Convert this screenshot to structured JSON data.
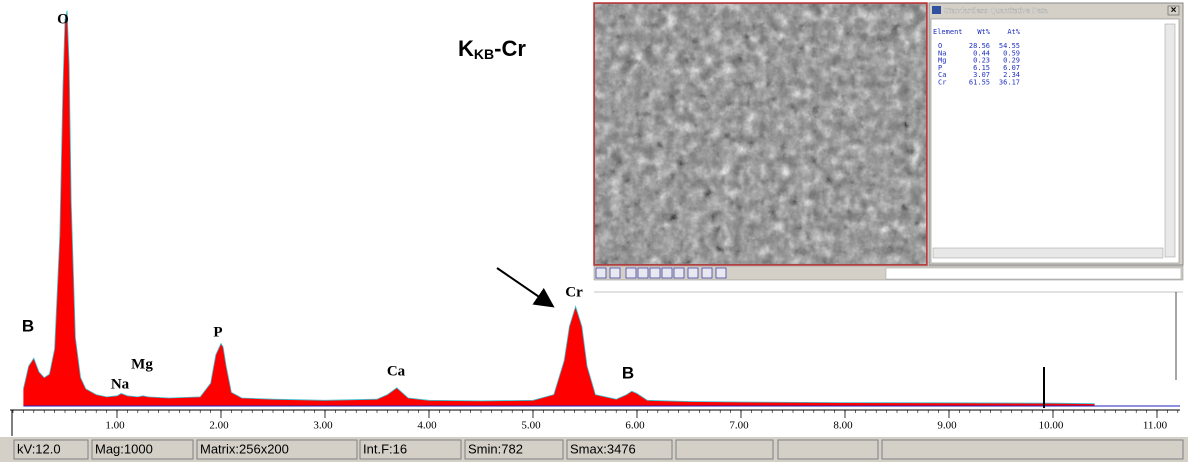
{
  "chart_data": {
    "type": "area",
    "title": {
      "main": "K",
      "sub": "KB",
      "rest": "-Cr"
    },
    "x": [
      0.1,
      0.15,
      0.2,
      0.25,
      0.3,
      0.35,
      0.4,
      0.45,
      0.48,
      0.5,
      0.52,
      0.54,
      0.56,
      0.6,
      0.65,
      0.7,
      0.8,
      0.9,
      1.0,
      1.04,
      1.1,
      1.2,
      1.25,
      1.3,
      1.5,
      1.8,
      1.9,
      1.95,
      2.0,
      2.02,
      2.05,
      2.1,
      2.2,
      2.5,
      3.0,
      3.5,
      3.6,
      3.69,
      3.8,
      4.0,
      4.5,
      5.0,
      5.2,
      5.3,
      5.35,
      5.41,
      5.47,
      5.52,
      5.6,
      5.8,
      5.9,
      5.95,
      6.0,
      6.1,
      6.5,
      7.0,
      8.0,
      9.0,
      10.0,
      10.4
    ],
    "values": [
      150,
      350,
      420,
      300,
      250,
      280,
      500,
      1500,
      2800,
      3400,
      3476,
      3000,
      1800,
      600,
      250,
      150,
      100,
      80,
      90,
      110,
      90,
      80,
      90,
      80,
      70,
      80,
      200,
      450,
      550,
      520,
      350,
      120,
      70,
      60,
      50,
      60,
      100,
      160,
      70,
      50,
      45,
      50,
      100,
      400,
      700,
      875,
      700,
      350,
      100,
      60,
      100,
      130,
      110,
      50,
      40,
      35,
      30,
      28,
      25,
      20
    ],
    "color": "#ff0000",
    "xlim": [
      0,
      11.2
    ],
    "ylim": [
      0,
      3500
    ],
    "xticks": [
      {
        "value": 1,
        "label": "1.00"
      },
      {
        "value": 2,
        "label": "2.00"
      },
      {
        "value": 3,
        "label": "3.00"
      },
      {
        "value": 4,
        "label": "4.00"
      },
      {
        "value": 5,
        "label": "5.00"
      },
      {
        "value": 6,
        "label": "6.00"
      },
      {
        "value": 7,
        "label": "7.00"
      },
      {
        "value": 8,
        "label": "8.00"
      },
      {
        "value": 9,
        "label": "9.00"
      },
      {
        "value": 10,
        "label": "10.00"
      },
      {
        "value": 11,
        "label": "11.00"
      }
    ],
    "peak_labels": [
      "B",
      "O",
      "Na",
      "Mg",
      "P",
      "Ca",
      "Cr",
      "B"
    ]
  },
  "quant_window": {
    "title": "Standardless Quantitative Data",
    "close": "×",
    "header": [
      "Element",
      "Wt%",
      "At%"
    ],
    "rows": [
      [
        "O",
        "28.56",
        "54.55"
      ],
      [
        "Na",
        "0.44",
        "0.59"
      ],
      [
        "Mg",
        "0.23",
        "0.29"
      ],
      [
        "P",
        "6.15",
        "6.07"
      ],
      [
        "Ca",
        "3.07",
        "2.34"
      ],
      [
        "Cr",
        "61.55",
        "36.17"
      ]
    ]
  },
  "status_bar": [
    "kV:12.0",
    "Mag:1000",
    "Matrix:256x200",
    "Int.F:16",
    "Smin:782",
    "Smax:3476"
  ]
}
